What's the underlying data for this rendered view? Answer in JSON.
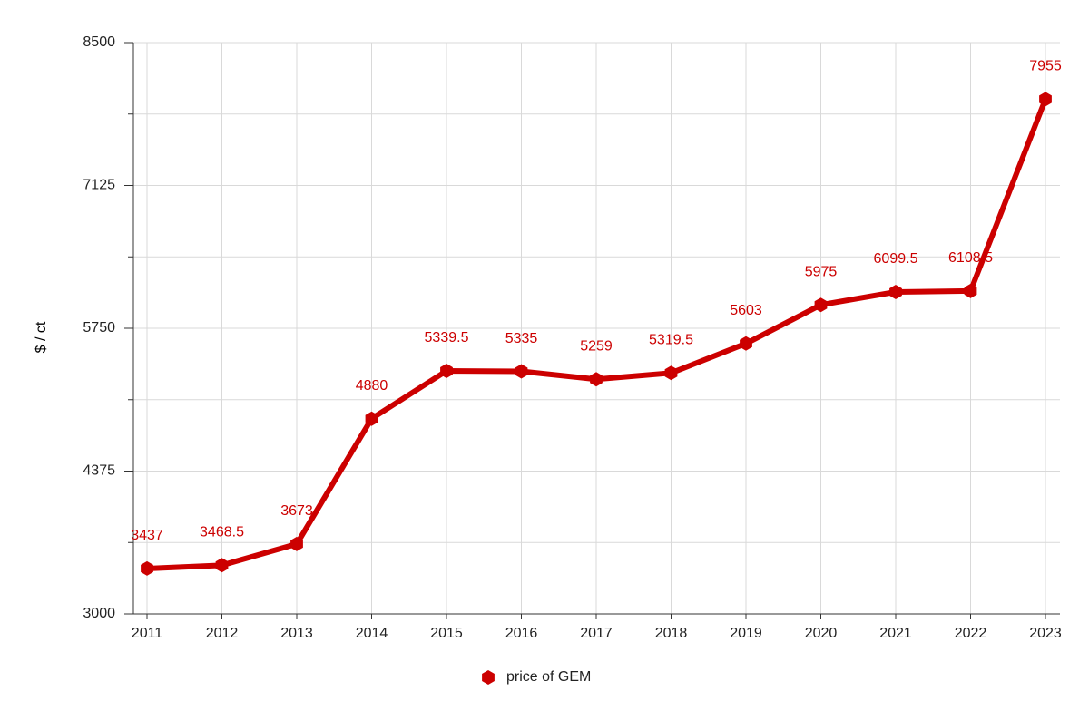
{
  "chart_data": {
    "type": "line",
    "y_label": "$ / ct",
    "categories": [
      "2011",
      "2012",
      "2013",
      "2014",
      "2015",
      "2016",
      "2017",
      "2018",
      "2019",
      "2020",
      "2021",
      "2022",
      "2023"
    ],
    "series": [
      {
        "name": "price of GEM",
        "color": "#cc0000",
        "values": [
          3437,
          3468.5,
          3673,
          4880,
          5339.5,
          5335,
          5259,
          5319.5,
          5603,
          5975,
          6099.5,
          6108.5,
          7955
        ]
      }
    ],
    "ylim": [
      3000,
      8500
    ],
    "yticks": [
      3000,
      4375,
      5750,
      7125,
      8500
    ],
    "yminor_ticks": [
      3687.5,
      5062.5,
      6437.5,
      7812.5
    ],
    "grid": true,
    "legend": "bottom"
  }
}
